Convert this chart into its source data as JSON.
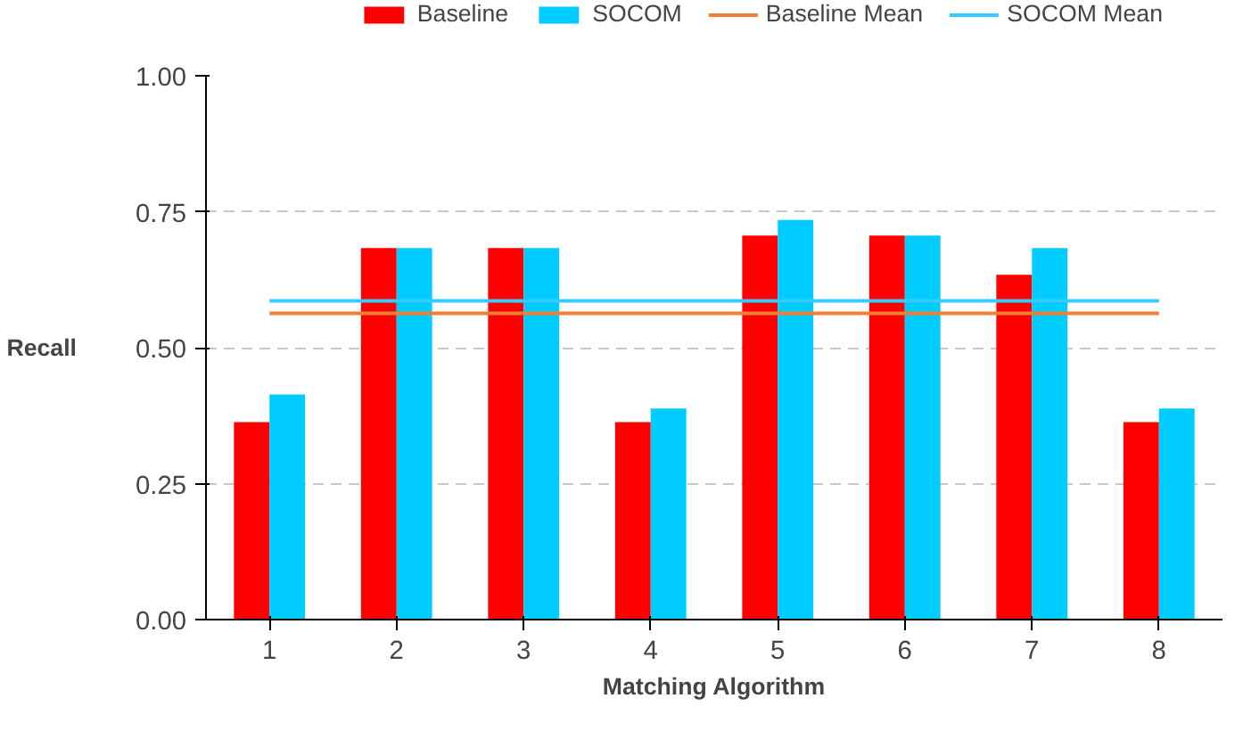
{
  "chart_data": {
    "type": "bar",
    "xlabel": "Matching Algorithm",
    "ylabel": "Recall",
    "categories": [
      "1",
      "2",
      "3",
      "4",
      "5",
      "6",
      "7",
      "8"
    ],
    "series": [
      {
        "name": "Baseline",
        "color": "#ff0000",
        "values": [
          0.363,
          0.683,
          0.683,
          0.363,
          0.706,
          0.706,
          0.634,
          0.363
        ]
      },
      {
        "name": "SOCOM",
        "color": "#00ccff",
        "values": [
          0.414,
          0.683,
          0.683,
          0.388,
          0.735,
          0.706,
          0.683,
          0.388
        ]
      },
      {
        "name": "Baseline Mean",
        "type": "line",
        "color": "#f07f33",
        "values": [
          0.563,
          0.563,
          0.563,
          0.563,
          0.563,
          0.563,
          0.563,
          0.563
        ]
      },
      {
        "name": "SOCOM Mean",
        "type": "line",
        "color": "#33ccff",
        "values": [
          0.586,
          0.586,
          0.586,
          0.586,
          0.586,
          0.586,
          0.586,
          0.586
        ]
      }
    ],
    "ylim": [
      0,
      1
    ],
    "yticks": [
      {
        "value": 0,
        "label": "0.00"
      },
      {
        "value": 0.25,
        "label": "0.25"
      },
      {
        "value": 0.5,
        "label": "0.50"
      },
      {
        "value": 0.75,
        "label": "0.75"
      },
      {
        "value": 1,
        "label": "1.00"
      }
    ],
    "grid": "y",
    "legend": "top"
  }
}
